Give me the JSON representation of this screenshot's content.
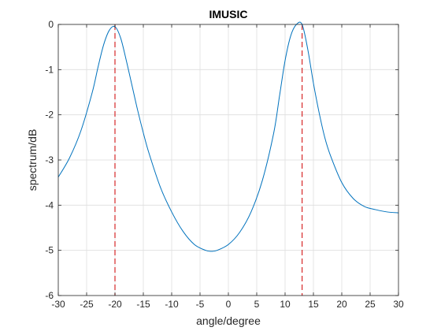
{
  "chart_data": {
    "type": "line",
    "title": "IMUSIC",
    "xlabel": "angle/degree",
    "ylabel": "spectrum/dB",
    "xlim": [
      -30,
      30
    ],
    "ylim": [
      -6,
      0
    ],
    "xticks": [
      -30,
      -25,
      -20,
      -15,
      -10,
      -5,
      0,
      5,
      10,
      15,
      20,
      25,
      30
    ],
    "yticks": [
      0,
      -1,
      -2,
      -3,
      -4,
      -5,
      -6
    ],
    "grid": true,
    "series": [
      {
        "color": "#0072bd",
        "x": [
          -30,
          -28,
          -26,
          -24,
          -23,
          -22,
          -21,
          -20,
          -19,
          -18,
          -17,
          -16,
          -15,
          -14,
          -12,
          -10,
          -8,
          -6,
          -4,
          -3,
          -2,
          0,
          2,
          4,
          6,
          8,
          9,
          10,
          11,
          12,
          13,
          14,
          15,
          16,
          17,
          18,
          20,
          22,
          24,
          26,
          28,
          30
        ],
        "y": [
          -3.38,
          -2.95,
          -2.35,
          -1.5,
          -0.95,
          -0.45,
          -0.13,
          -0.05,
          -0.3,
          -0.8,
          -1.35,
          -1.9,
          -2.4,
          -2.85,
          -3.6,
          -4.15,
          -4.58,
          -4.87,
          -5.0,
          -5.02,
          -5.0,
          -4.87,
          -4.6,
          -4.15,
          -3.45,
          -2.4,
          -1.6,
          -0.8,
          -0.25,
          0,
          0,
          -0.55,
          -1.3,
          -1.95,
          -2.5,
          -2.9,
          -3.5,
          -3.85,
          -4.03,
          -4.1,
          -4.15,
          -4.17
        ]
      }
    ],
    "vlines": [
      {
        "x": -20,
        "color": "#d62728",
        "style": "dashed"
      },
      {
        "x": 13,
        "color": "#d62728",
        "style": "dashed"
      }
    ]
  }
}
